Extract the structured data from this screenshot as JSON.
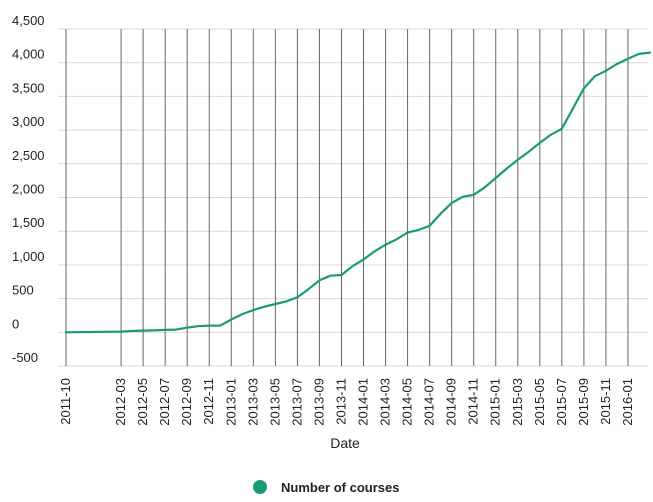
{
  "chart_data": {
    "type": "line",
    "xlabel": "Date",
    "ylabel": "",
    "ylim": [
      -500,
      4500
    ],
    "yticks": [
      -500,
      0,
      500,
      1000,
      1500,
      2000,
      2500,
      3000,
      3500,
      4000,
      4500
    ],
    "ytick_labels": [
      "-500",
      "0",
      "500",
      "1,000",
      "1,500",
      "2,000",
      "2,500",
      "3,000",
      "3,500",
      "4,000",
      "4,500"
    ],
    "xtick_labels": [
      "2011-10",
      "2012-03",
      "2012-05",
      "2012-07",
      "2012-09",
      "2012-11",
      "2013-01",
      "2013-03",
      "2013-05",
      "2013-07",
      "2013-09",
      "2013-11",
      "2014-01",
      "2014-03",
      "2014-05",
      "2014-07",
      "2014-09",
      "2014-11",
      "2015-01",
      "2015-03",
      "2015-05",
      "2015-07",
      "2015-09",
      "2015-11",
      "2016-01"
    ],
    "grid": true,
    "legend_position": "bottom-center",
    "series": [
      {
        "name": "Number of courses",
        "color": "#1a9b76",
        "x": [
          "2011-10",
          "2012-03",
          "2012-04",
          "2012-05",
          "2012-06",
          "2012-07",
          "2012-08",
          "2012-09",
          "2012-10",
          "2012-11",
          "2012-12",
          "2013-01",
          "2013-02",
          "2013-03",
          "2013-04",
          "2013-05",
          "2013-06",
          "2013-07",
          "2013-08",
          "2013-09",
          "2013-10",
          "2013-11",
          "2013-12",
          "2014-01",
          "2014-02",
          "2014-03",
          "2014-04",
          "2014-05",
          "2014-06",
          "2014-07",
          "2014-08",
          "2014-09",
          "2014-10",
          "2014-11",
          "2014-12",
          "2015-01",
          "2015-02",
          "2015-03",
          "2015-04",
          "2015-05",
          "2015-06",
          "2015-07",
          "2015-08",
          "2015-09",
          "2015-10",
          "2015-11",
          "2015-12",
          "2016-01",
          "2016-02",
          "2016-03"
        ],
        "values": [
          0,
          10,
          20,
          25,
          30,
          35,
          40,
          70,
          90,
          100,
          100,
          190,
          270,
          330,
          380,
          420,
          460,
          520,
          640,
          770,
          840,
          850,
          980,
          1080,
          1200,
          1300,
          1380,
          1480,
          1520,
          1580,
          1760,
          1920,
          2010,
          2040,
          2150,
          2290,
          2430,
          2560,
          2680,
          2810,
          2930,
          3020,
          3320,
          3620,
          3800,
          3880,
          3980,
          4060,
          4130,
          4150
        ]
      }
    ]
  }
}
